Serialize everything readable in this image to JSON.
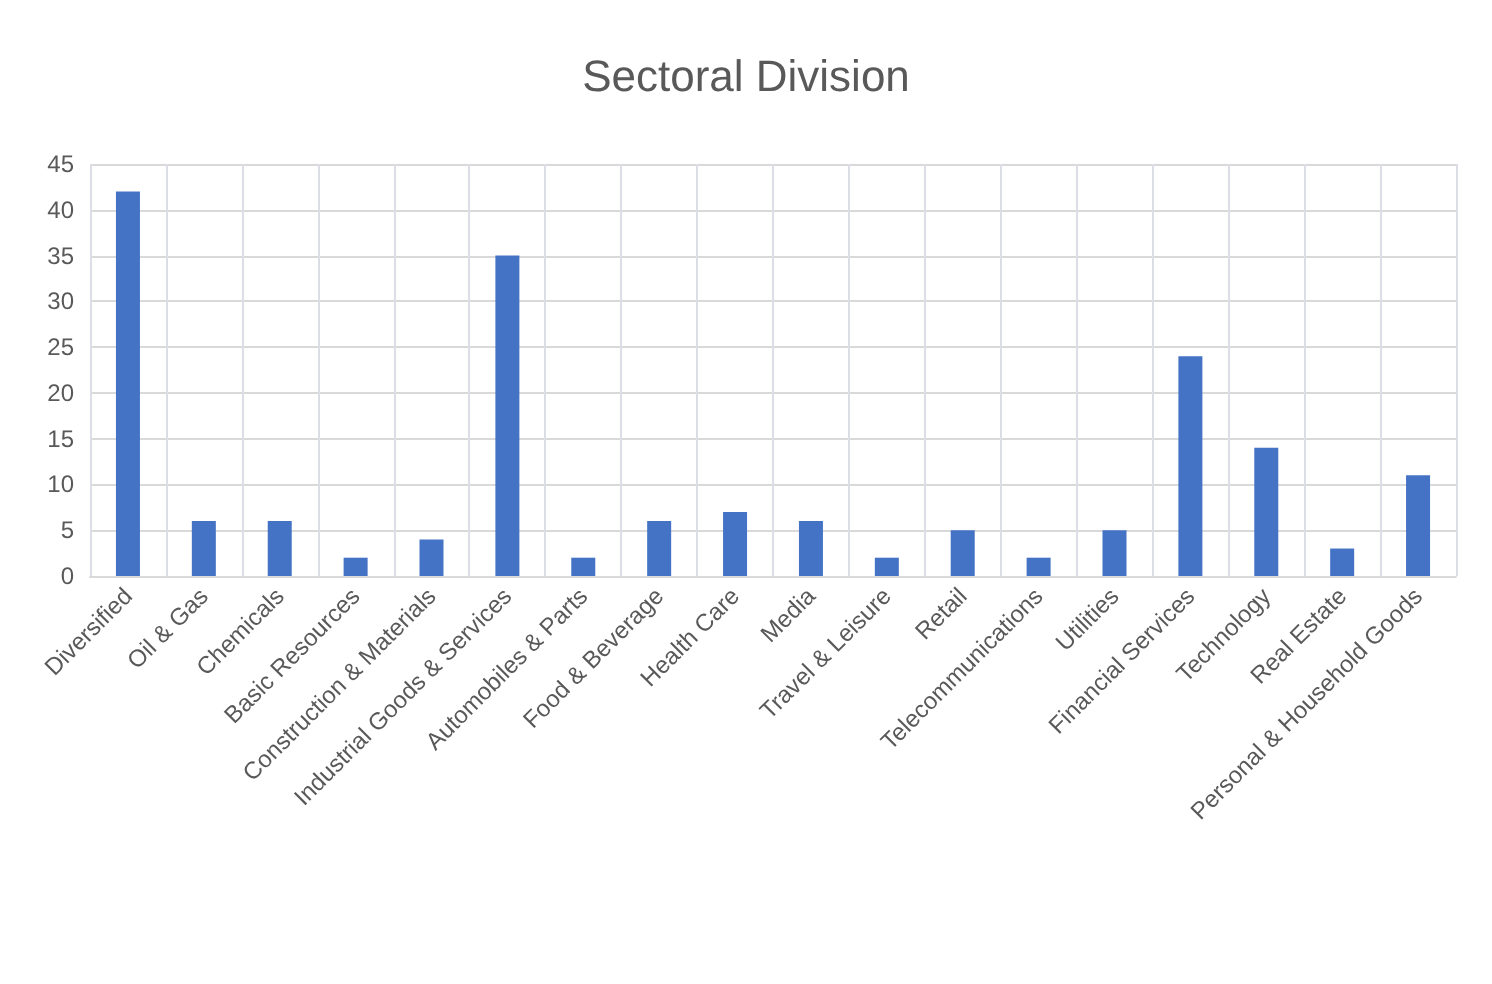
{
  "chart_data": {
    "type": "bar",
    "title": "Sectoral Division",
    "categories": [
      "Diversified",
      "Oil & Gas",
      "Chemicals",
      "Basic Resources",
      "Construction & Materials",
      "Industrial Goods & Services",
      "Automobiles & Parts",
      "Food & Beverage",
      "Health Care",
      "Media",
      "Travel & Leisure",
      "Retail",
      "Telecommunications",
      "Utilities",
      "Financial Services",
      "Technology",
      "Real Estate",
      "Personal & Household Goods"
    ],
    "values": [
      42,
      6,
      6,
      2,
      4,
      35,
      2,
      6,
      7,
      6,
      2,
      5,
      2,
      5,
      24,
      14,
      3,
      11
    ],
    "color": "#4472c4",
    "ylim": [
      0,
      45
    ],
    "yticks": [
      0,
      5,
      10,
      15,
      20,
      25,
      30,
      35,
      40,
      45
    ],
    "grid": true
  }
}
